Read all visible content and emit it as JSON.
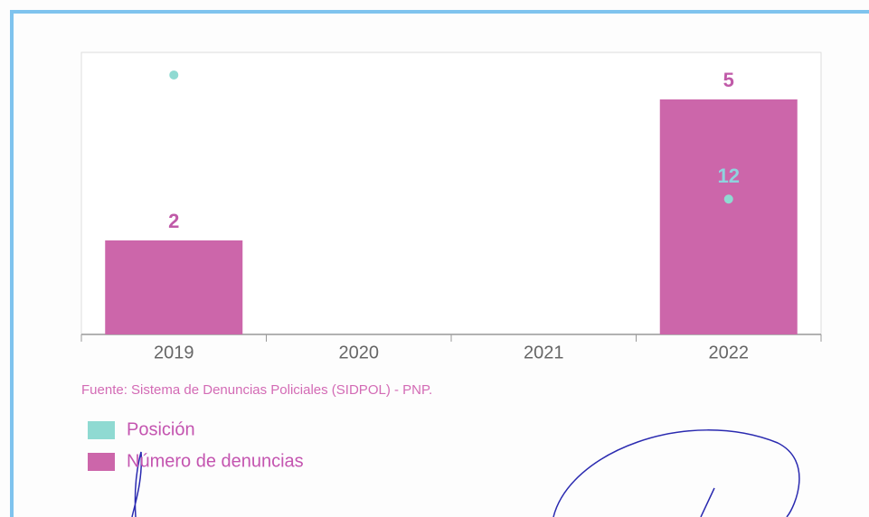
{
  "chart_data": {
    "type": "bar",
    "categories": [
      "2019",
      "2020",
      "2021",
      "2022"
    ],
    "series": [
      {
        "name": "Posición",
        "type": "scatter",
        "axis": "y2",
        "color": "#8fdad2",
        "values": [
          23,
          null,
          null,
          12
        ],
        "value_labels": [
          null,
          null,
          null,
          "12"
        ]
      },
      {
        "name": "Número de denuncias",
        "type": "bar",
        "color": "#cc66aa",
        "values": [
          2,
          null,
          null,
          5
        ]
      }
    ],
    "ylim": [
      0,
      6
    ],
    "y2lim": [
      0,
      25
    ],
    "source": "Fuente: Sistema de Denuncias Policiales (SIDPOL) - PNP.",
    "legend": "bottom-left"
  }
}
